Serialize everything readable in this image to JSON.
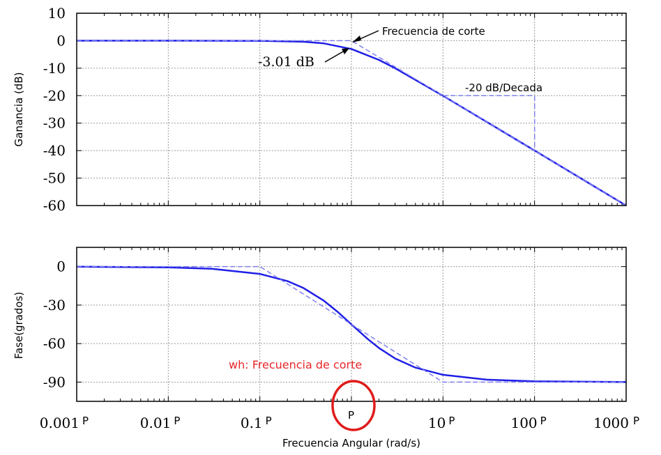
{
  "chart_data": [
    {
      "type": "line",
      "xscale": "log",
      "xlim": [
        0.001,
        1000
      ],
      "ylim": [
        -60,
        10
      ],
      "ylabel": "Ganancia (dB)",
      "grid": true,
      "yticks": [
        "10",
        "0",
        "-10",
        "-20",
        "-30",
        "-40",
        "-50",
        "-60"
      ],
      "yticks_values": [
        10,
        0,
        -10,
        -20,
        -30,
        -40,
        -50,
        -60
      ],
      "series": [
        {
          "style": "solid",
          "color": "#1f1fe6",
          "x": [
            0.001,
            0.01,
            0.1,
            0.3,
            0.5,
            1,
            2,
            3,
            10,
            100,
            1000
          ],
          "y": [
            0,
            0,
            -0.04,
            -0.37,
            -0.97,
            -3.01,
            -6.99,
            -10,
            -20.04,
            -40,
            -60
          ]
        },
        {
          "style": "dashed",
          "color": "#7f7ff2",
          "x": [
            0.001,
            1,
            1000
          ],
          "y": [
            0,
            0,
            -60
          ]
        },
        {
          "style": "dashed",
          "color": "#7f7ff2",
          "x": [
            10,
            100,
            100
          ],
          "y": [
            -20,
            -20,
            -40
          ]
        }
      ],
      "annotations": [
        {
          "text": "Frecuencia de corte",
          "x": 1,
          "y": 0
        },
        {
          "text": "-3.01 dB",
          "x": 1,
          "y": -3.01
        },
        {
          "text": "-20 dB/Decada",
          "x": 31.6,
          "y": -20
        }
      ]
    },
    {
      "type": "line",
      "xscale": "log",
      "xlim": [
        0.001,
        1000
      ],
      "ylim": [
        -105,
        15
      ],
      "ylabel": "Fase(grados)",
      "xlabel": "Frecuencia Angular (rad/s)",
      "grid": true,
      "yticks": [
        "0",
        "-30",
        "-60",
        "-90"
      ],
      "yticks_values": [
        0,
        -30,
        -60,
        -90
      ],
      "xticks": [
        {
          "value": 0.001,
          "num": "0.001",
          "suffix": "P"
        },
        {
          "value": 0.01,
          "num": "0.01",
          "suffix": "P"
        },
        {
          "value": 0.1,
          "num": "0.1",
          "suffix": "P"
        },
        {
          "value": 1,
          "num": "",
          "suffix": "P"
        },
        {
          "value": 10,
          "num": "10",
          "suffix": "P"
        },
        {
          "value": 100,
          "num": "100",
          "suffix": "P"
        },
        {
          "value": 1000,
          "num": "1000",
          "suffix": "P"
        }
      ],
      "series": [
        {
          "style": "solid",
          "color": "#1f1fe6",
          "x": [
            0.001,
            0.01,
            0.03,
            0.1,
            0.2,
            0.3,
            0.5,
            0.7,
            1,
            1.5,
            2,
            3,
            5,
            10,
            30,
            100,
            1000
          ],
          "y": [
            -0.06,
            -0.57,
            -1.7,
            -5.7,
            -11.3,
            -16.7,
            -26.6,
            -35,
            -45,
            -56.3,
            -63.4,
            -71.6,
            -78.7,
            -84.3,
            -88.1,
            -89.4,
            -89.94
          ]
        },
        {
          "style": "dashed",
          "color": "#7f7ff2",
          "x": [
            0.001,
            0.1,
            10,
            1000
          ],
          "y": [
            0,
            0,
            -90,
            -90
          ]
        }
      ],
      "annotations": [
        {
          "text": "wh: Frecuencia de corte",
          "color": "#e8262b"
        }
      ]
    }
  ]
}
